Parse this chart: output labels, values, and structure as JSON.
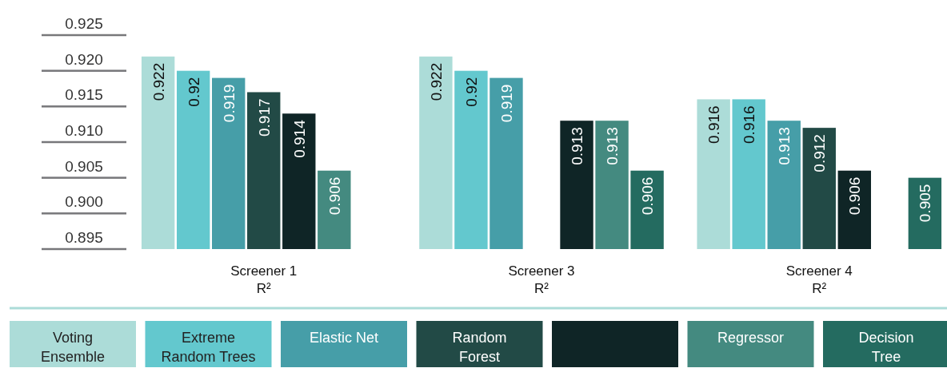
{
  "chart_data": {
    "type": "bar",
    "categories": [
      "Screener 1\nR²",
      "Screener 3\nR²",
      "Screener 4\nR²"
    ],
    "series": [
      {
        "name": "Voting Ensemble",
        "color": "#acdcd8",
        "values": [
          0.922,
          0.922,
          0.916
        ]
      },
      {
        "name": "Extreme Random Trees",
        "color": "#63c8ce",
        "values": [
          0.92,
          0.92,
          0.916
        ]
      },
      {
        "name": "Elastic Net",
        "color": "#469ea8",
        "values": [
          0.919,
          0.919,
          0.913
        ]
      },
      {
        "name": "Random Forest",
        "color": "#224a46",
        "values": [
          0.917,
          null,
          0.912
        ]
      },
      {
        "color": "#0f2526",
        "values": [
          0.914,
          0.913,
          0.906
        ]
      },
      {
        "name": "Regressor",
        "color": "#448a80",
        "values": [
          0.906,
          0.913,
          null
        ]
      },
      {
        "name": "Decision Tree",
        "color": "#246b60",
        "values": [
          null,
          0.906,
          0.905
        ]
      }
    ],
    "ylim": [
      0.895,
      0.925
    ],
    "yticks": [
      {
        "value": 0.925,
        "label": "0.925"
      },
      {
        "value": 0.92,
        "label": "0.920"
      },
      {
        "value": 0.915,
        "label": "0.915"
      },
      {
        "value": 0.91,
        "label": "0.910"
      },
      {
        "value": 0.905,
        "label": "0.905"
      },
      {
        "value": 0.9,
        "label": "0.900"
      },
      {
        "value": 0.895,
        "label": "0.895"
      }
    ],
    "data_labels": true,
    "legend": "bottom"
  }
}
